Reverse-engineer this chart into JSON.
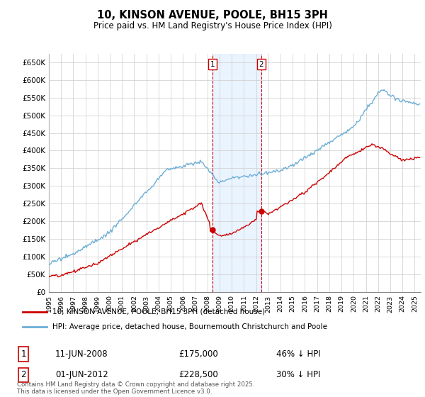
{
  "title": "10, KINSON AVENUE, POOLE, BH15 3PH",
  "subtitle": "Price paid vs. HM Land Registry's House Price Index (HPI)",
  "ylim": [
    0,
    675000
  ],
  "yticks": [
    0,
    50000,
    100000,
    150000,
    200000,
    250000,
    300000,
    350000,
    400000,
    450000,
    500000,
    550000,
    600000,
    650000
  ],
  "ytick_labels": [
    "£0",
    "£50K",
    "£100K",
    "£150K",
    "£200K",
    "£250K",
    "£300K",
    "£350K",
    "£400K",
    "£450K",
    "£500K",
    "£550K",
    "£600K",
    "£650K"
  ],
  "sale1_date_num": 2008.44,
  "sale1_price": 175000,
  "sale1_label": "11-JUN-2008",
  "sale1_pct": "46%",
  "sale2_date_num": 2012.42,
  "sale2_price": 228500,
  "sale2_label": "01-JUN-2012",
  "sale2_pct": "30%",
  "hpi_color": "#6baed6",
  "price_color": "#cc0000",
  "shade_color": "#ddeeff",
  "marker_color": "#cc0000",
  "legend_label_price": "10, KINSON AVENUE, POOLE, BH15 3PH (detached house)",
  "legend_label_hpi": "HPI: Average price, detached house, Bournemouth Christchurch and Poole",
  "footer": "Contains HM Land Registry data © Crown copyright and database right 2025.\nThis data is licensed under the Open Government Licence v3.0.",
  "background_color": "#ffffff",
  "grid_color": "#cccccc"
}
